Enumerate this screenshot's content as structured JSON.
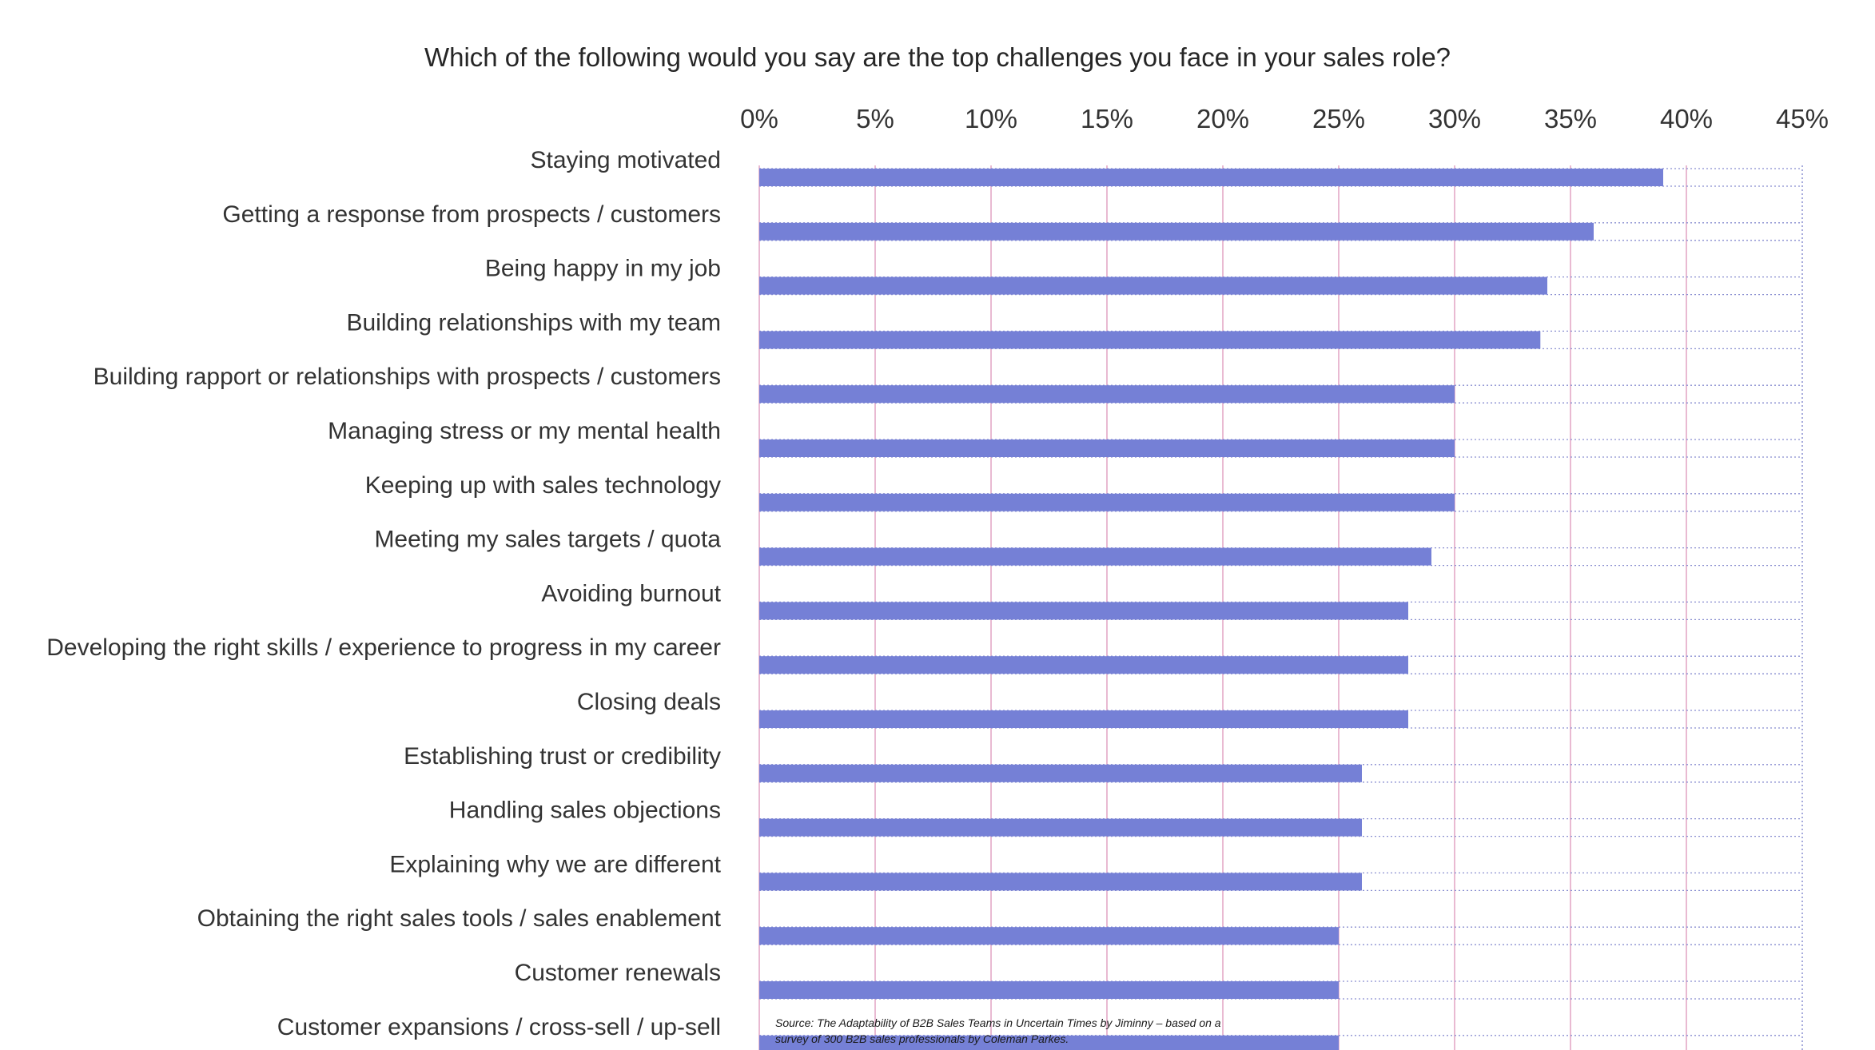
{
  "chart_data": {
    "type": "bar",
    "orientation": "horizontal",
    "title": "Which of the following would you say are the top challenges you face in your sales role?",
    "xlabel": "",
    "ylabel": "",
    "xlim": [
      0,
      45
    ],
    "x_ticks": [
      0,
      5,
      10,
      15,
      20,
      25,
      30,
      35,
      40,
      45
    ],
    "x_tick_labels": [
      "0%",
      "5%",
      "10%",
      "15%",
      "20%",
      "25%",
      "30%",
      "35%",
      "40%",
      "45%"
    ],
    "x_axis_position": "top",
    "grid": true,
    "legend": "none",
    "bar_color": "#7580d6",
    "grid_color": "#e2a4c4",
    "row_line_color": "#8a8fd0",
    "categories": [
      "Staying motivated",
      "Getting a response from prospects / customers",
      "Being happy in my job",
      "Building relationships with my team",
      "Building rapport or relationships with prospects / customers",
      "Managing stress or my mental health",
      "Keeping up with sales technology",
      "Meeting my sales targets / quota",
      "Avoiding burnout",
      "Developing the right skills / experience to progress in my career",
      "Closing deals",
      "Establishing trust or credibility",
      "Handling sales objections",
      "Explaining why we are different",
      "Obtaining the right sales tools / sales enablement",
      "Customer renewals",
      "Customer expansions / cross-sell / up-sell"
    ],
    "values": [
      39,
      36,
      34,
      33.7,
      30,
      30,
      30,
      29,
      28,
      28,
      28,
      26,
      26,
      26,
      25,
      25,
      25
    ],
    "source_lines": [
      "Source: The Adaptability of B2B Sales Teams in Uncertain Times by Jiminny – based on a",
      "survey of 300 B2B sales professionals by Coleman Parkes."
    ]
  }
}
